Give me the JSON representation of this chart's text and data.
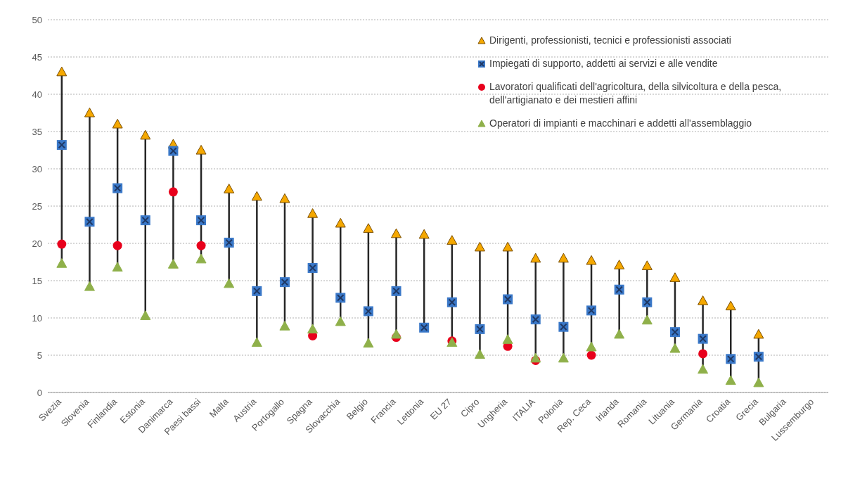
{
  "chart_data": {
    "type": "scatter",
    "categories": [
      "Svezia",
      "Slovenia",
      "Finlandia",
      "Estonia",
      "Danimarca",
      "Paesi bassi",
      "Malta",
      "Austria",
      "Portogallo",
      "Spagna",
      "Slovacchia",
      "Belgio",
      "Francia",
      "Lettonia",
      "EU 27",
      "Cipro",
      "Ungheria",
      "ITALIA",
      "Polonia",
      "Rep. Ceca",
      "Irlanda",
      "Romania",
      "Lituania",
      "Germania",
      "Croatia",
      "Grecia",
      "Bulgaria",
      "Lussemburgo"
    ],
    "series": [
      {
        "name": "Dirigenti, professionisti, tecnici e professionisti associati",
        "color": "#f5a800",
        "marker": "triangle",
        "values": [
          43,
          37.5,
          36,
          34.5,
          33.3,
          32.5,
          27.3,
          26.3,
          26,
          24,
          22.7,
          22,
          21.3,
          21.2,
          20.4,
          19.5,
          19.5,
          18,
          18,
          17.7,
          17.1,
          17,
          15.4,
          12.3,
          11.6,
          7.8,
          null,
          null
        ]
      },
      {
        "name": "Impiegati di supporto, addetti ai servizi e alle vendite",
        "color": "#3a78c8",
        "marker": "square",
        "values": [
          33.2,
          22.9,
          27.4,
          23.1,
          32.4,
          23.1,
          20.1,
          13.6,
          14.8,
          16.7,
          12.7,
          10.9,
          13.6,
          8.7,
          12.1,
          8.5,
          12.5,
          9.8,
          8.8,
          11,
          13.8,
          12.1,
          8.1,
          7.2,
          4.5,
          4.8,
          null,
          null
        ]
      },
      {
        "name": "Lavoratori qualificati dell'agricoltura, della silvicoltura e della pesca, dell'artigianato e dei mestieri affini",
        "color": "#e8001c",
        "marker": "circle",
        "values": [
          19.9,
          null,
          19.7,
          null,
          26.9,
          19.7,
          null,
          null,
          null,
          7.6,
          null,
          null,
          7.4,
          null,
          6.9,
          null,
          6.2,
          4.3,
          null,
          5,
          null,
          null,
          null,
          5.2,
          null,
          null,
          null,
          null
        ]
      },
      {
        "name": "Operatori di impianti e macchinari e addetti all'assemblaggio",
        "color": "#8fb04a",
        "marker": "triangle",
        "values": [
          17.3,
          14.2,
          16.8,
          10.3,
          17.2,
          17.9,
          14.6,
          6.7,
          8.9,
          8.5,
          9.5,
          6.6,
          7.8,
          null,
          6.7,
          5.1,
          7.1,
          4.6,
          4.6,
          6.1,
          7.8,
          9.7,
          5.9,
          3.1,
          1.6,
          1.3,
          null,
          null
        ]
      }
    ],
    "ylim": [
      0,
      50
    ],
    "yticks": [
      0,
      5,
      10,
      15,
      20,
      25,
      30,
      35,
      40,
      45,
      50
    ],
    "grid": "y",
    "legend": "top right"
  }
}
